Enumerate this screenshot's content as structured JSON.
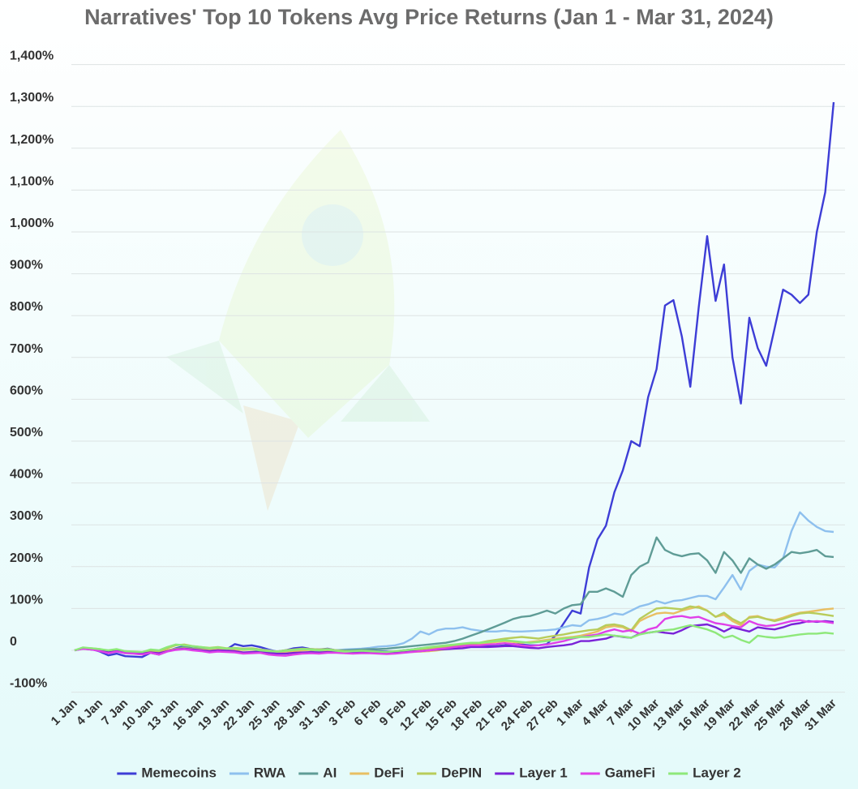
{
  "chart_data": {
    "type": "line",
    "title": "Narratives' Top 10 Tokens Avg Price Returns (Jan 1 - Mar 31, 2024)",
    "categories": [
      "1 Jan",
      null,
      null,
      "4 Jan",
      null,
      null,
      "7 Jan",
      null,
      null,
      "10 Jan",
      null,
      null,
      "13 Jan",
      null,
      null,
      "16 Jan",
      null,
      null,
      "19 Jan",
      null,
      null,
      "22 Jan",
      null,
      null,
      "25 Jan",
      null,
      null,
      "28 Jan",
      null,
      null,
      "31 Jan",
      null,
      null,
      "3 Feb",
      null,
      null,
      "6 Feb",
      null,
      null,
      "9 Feb",
      null,
      null,
      "12 Feb",
      null,
      null,
      "15 Feb",
      null,
      null,
      "18 Feb",
      null,
      null,
      "21 Feb",
      null,
      null,
      "24 Feb",
      null,
      null,
      "27 Feb",
      null,
      null,
      "1 Mar",
      null,
      null,
      "4 Mar",
      null,
      null,
      "7 Mar",
      null,
      null,
      "10 Mar",
      null,
      null,
      "13 Mar",
      null,
      null,
      "16 Mar",
      null,
      null,
      "19 Mar",
      null,
      null,
      "22 Mar",
      null,
      null,
      "25 Mar",
      null,
      null,
      "28 Mar",
      null,
      null,
      "31 Mar"
    ],
    "ylim": [
      -100,
      1400
    ],
    "yticks": [
      {
        "value": -100,
        "label": "-100%"
      },
      0,
      {
        "value": 100,
        "label": "100%"
      },
      {
        "value": 200,
        "label": "200%"
      },
      {
        "value": 300,
        "label": "300%"
      },
      {
        "value": 400,
        "label": "400%"
      },
      {
        "value": 500,
        "label": "500%"
      },
      {
        "value": 600,
        "label": "600%"
      },
      {
        "value": 700,
        "label": "700%"
      },
      {
        "value": 800,
        "label": "800%"
      },
      {
        "value": 900,
        "label": "900%"
      },
      {
        "value": 1000,
        "label": "1,000%"
      },
      {
        "value": 1100,
        "label": "1,100%"
      },
      {
        "value": 1200,
        "label": "1,200%"
      },
      {
        "value": 1300,
        "label": "1,300%"
      },
      {
        "value": 1400,
        "label": "1,400%"
      }
    ],
    "grid": true,
    "legend": "bottom",
    "series": [
      {
        "name": "Memecoins",
        "color": "#3d3dd6",
        "values": [
          0,
          5,
          3,
          -3,
          -12,
          -8,
          -14,
          -15,
          -16,
          -6,
          -10,
          -2,
          5,
          10,
          4,
          6,
          3,
          5,
          2,
          15,
          10,
          12,
          8,
          2,
          -3,
          0,
          5,
          7,
          3,
          2,
          4,
          0,
          -3,
          -2,
          0,
          2,
          -2,
          -3,
          -3,
          0,
          2,
          5,
          5,
          8,
          8,
          10,
          12,
          15,
          12,
          10,
          10,
          12,
          15,
          14,
          12,
          12,
          15,
          35,
          65,
          95,
          88,
          198,
          265,
          298,
          378,
          430,
          500,
          488,
          605,
          672,
          824,
          837,
          750,
          630,
          820,
          990,
          835,
          922,
          700,
          590,
          795,
          722,
          680,
          770,
          862,
          850,
          830,
          850,
          1000,
          1095,
          1310
        ]
      },
      {
        "name": "RWA",
        "color": "#8ec0ee",
        "values": [
          0,
          5,
          3,
          2,
          -2,
          0,
          -3,
          -5,
          -6,
          -3,
          -4,
          0,
          3,
          5,
          3,
          2,
          0,
          2,
          1,
          3,
          2,
          4,
          2,
          0,
          -3,
          -2,
          0,
          2,
          1,
          0,
          1,
          0,
          2,
          3,
          4,
          6,
          9,
          10,
          12,
          17,
          28,
          45,
          38,
          48,
          52,
          52,
          55,
          50,
          47,
          45,
          45,
          47,
          45,
          45,
          46,
          47,
          48,
          50,
          55,
          60,
          58,
          72,
          75,
          80,
          88,
          85,
          95,
          105,
          110,
          118,
          112,
          118,
          120,
          125,
          130,
          130,
          122,
          150,
          180,
          145,
          190,
          205,
          200,
          198,
          220,
          285,
          330,
          310,
          295,
          285,
          283
        ]
      },
      {
        "name": "AI",
        "color": "#5f9c96",
        "values": [
          0,
          5,
          4,
          2,
          -3,
          0,
          -5,
          -6,
          -8,
          -3,
          -5,
          0,
          4,
          8,
          5,
          4,
          3,
          4,
          2,
          5,
          3,
          4,
          2,
          -2,
          -4,
          -3,
          0,
          2,
          1,
          0,
          1,
          0,
          0,
          1,
          2,
          3,
          3,
          4,
          6,
          8,
          10,
          12,
          14,
          16,
          18,
          22,
          28,
          35,
          42,
          50,
          58,
          66,
          75,
          80,
          82,
          88,
          95,
          88,
          100,
          108,
          110,
          140,
          140,
          148,
          140,
          128,
          180,
          200,
          210,
          270,
          240,
          230,
          225,
          230,
          232,
          215,
          185,
          235,
          215,
          185,
          220,
          205,
          195,
          205,
          220,
          235,
          232,
          235,
          240,
          225,
          223
        ]
      },
      {
        "name": "DeFi",
        "color": "#e8bf63",
        "values": [
          0,
          5,
          3,
          2,
          -3,
          0,
          -3,
          -5,
          -6,
          -3,
          -5,
          0,
          3,
          5,
          3,
          2,
          0,
          2,
          1,
          2,
          1,
          2,
          0,
          -2,
          -4,
          -3,
          -2,
          0,
          1,
          0,
          0,
          -2,
          -3,
          -4,
          -3,
          -4,
          -5,
          -6,
          -5,
          -5,
          -4,
          -3,
          -2,
          0,
          3,
          5,
          8,
          12,
          15,
          18,
          20,
          22,
          20,
          18,
          20,
          22,
          25,
          28,
          30,
          32,
          35,
          40,
          45,
          55,
          58,
          55,
          45,
          70,
          80,
          88,
          90,
          88,
          95,
          100,
          105,
          95,
          80,
          85,
          70,
          60,
          80,
          82,
          75,
          72,
          78,
          85,
          90,
          92,
          95,
          98,
          100
        ]
      },
      {
        "name": "DePIN",
        "color": "#b8cc5a",
        "values": [
          0,
          6,
          5,
          3,
          -2,
          2,
          -2,
          -4,
          -5,
          0,
          -2,
          5,
          12,
          14,
          10,
          8,
          6,
          8,
          5,
          6,
          4,
          5,
          2,
          -1,
          -3,
          0,
          2,
          4,
          3,
          2,
          3,
          0,
          -2,
          -3,
          -2,
          -3,
          -4,
          -5,
          -3,
          -2,
          0,
          2,
          5,
          7,
          8,
          10,
          12,
          15,
          18,
          22,
          25,
          28,
          30,
          32,
          30,
          28,
          32,
          35,
          38,
          42,
          45,
          48,
          50,
          60,
          62,
          58,
          48,
          75,
          88,
          100,
          102,
          100,
          98,
          105,
          102,
          95,
          80,
          90,
          75,
          65,
          78,
          80,
          75,
          70,
          75,
          82,
          88,
          90,
          88,
          85,
          82
        ]
      },
      {
        "name": "Layer 1",
        "color": "#7a22d8",
        "values": [
          0,
          4,
          2,
          0,
          -5,
          -2,
          -5,
          -7,
          -8,
          -5,
          -7,
          -2,
          2,
          4,
          2,
          0,
          -2,
          0,
          -1,
          -2,
          -5,
          -4,
          -3,
          -6,
          -8,
          -8,
          -6,
          -5,
          -4,
          -5,
          -4,
          -5,
          -6,
          -6,
          -5,
          -5,
          -6,
          -7,
          -6,
          -5,
          -3,
          -2,
          0,
          2,
          3,
          4,
          5,
          8,
          8,
          8,
          9,
          10,
          10,
          8,
          6,
          5,
          8,
          10,
          12,
          15,
          22,
          22,
          25,
          28,
          35,
          32,
          30,
          40,
          42,
          45,
          42,
          40,
          48,
          58,
          60,
          62,
          55,
          45,
          55,
          50,
          45,
          55,
          52,
          50,
          55,
          62,
          65,
          70,
          68,
          70,
          68
        ]
      },
      {
        "name": "GameFi",
        "color": "#e040e8",
        "values": [
          0,
          4,
          2,
          -2,
          -7,
          -3,
          -7,
          -8,
          -10,
          -6,
          -10,
          -3,
          1,
          3,
          0,
          -2,
          -5,
          -3,
          -4,
          -5,
          -8,
          -7,
          -6,
          -10,
          -12,
          -13,
          -10,
          -8,
          -7,
          -8,
          -6,
          -6,
          -7,
          -8,
          -7,
          -7,
          -8,
          -9,
          -8,
          -6,
          -4,
          -2,
          0,
          3,
          5,
          8,
          10,
          12,
          12,
          14,
          15,
          17,
          15,
          12,
          10,
          12,
          14,
          18,
          22,
          28,
          32,
          35,
          38,
          45,
          50,
          45,
          48,
          40,
          50,
          55,
          75,
          80,
          82,
          78,
          80,
          72,
          65,
          62,
          58,
          55,
          70,
          62,
          58,
          60,
          65,
          70,
          72,
          68,
          70,
          68,
          65
        ]
      },
      {
        "name": "Layer 2",
        "color": "#8ee87a",
        "values": [
          0,
          7,
          5,
          3,
          0,
          3,
          -2,
          -3,
          -4,
          2,
          0,
          8,
          14,
          12,
          10,
          8,
          5,
          7,
          4,
          5,
          2,
          3,
          0,
          -2,
          -3,
          -1,
          1,
          3,
          2,
          0,
          2,
          -1,
          -3,
          -2,
          -1,
          -2,
          -3,
          -4,
          -2,
          0,
          2,
          5,
          8,
          10,
          12,
          14,
          16,
          18,
          18,
          20,
          22,
          24,
          22,
          20,
          18,
          20,
          22,
          25,
          28,
          30,
          32,
          32,
          35,
          38,
          35,
          33,
          30,
          38,
          42,
          45,
          48,
          50,
          55,
          60,
          55,
          50,
          42,
          30,
          35,
          25,
          18,
          35,
          32,
          30,
          32,
          35,
          38,
          40,
          40,
          42,
          40
        ]
      }
    ]
  }
}
